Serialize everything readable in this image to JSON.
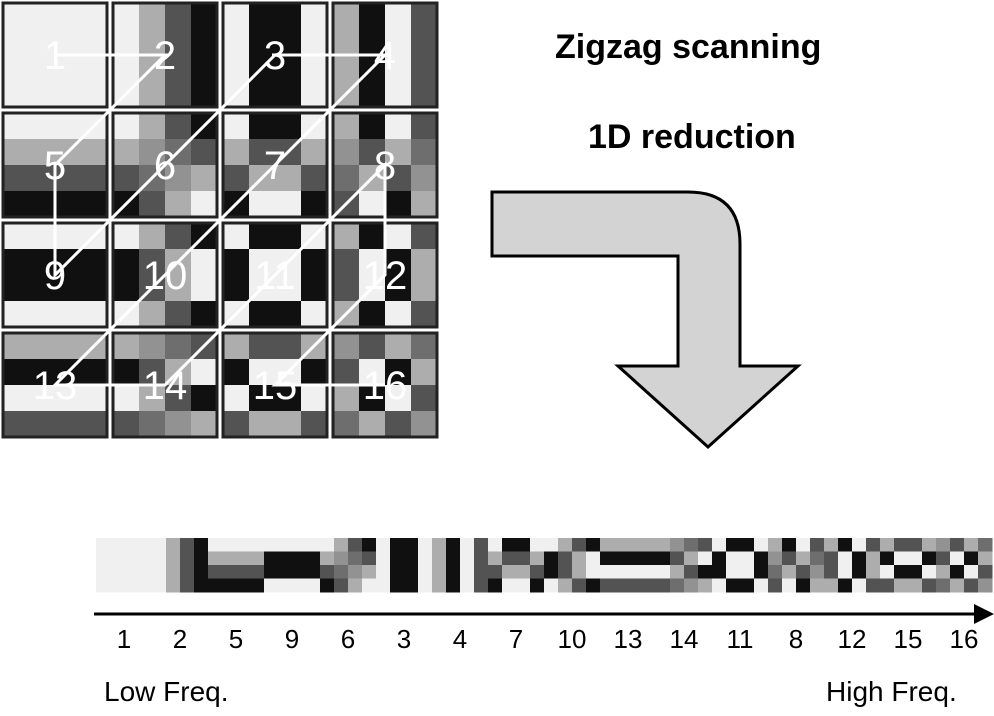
{
  "titles": {
    "line1": "Zigzag scanning",
    "line2": "1D reduction"
  },
  "grid": {
    "block_numbers": [
      "1",
      "2",
      "3",
      "4",
      "5",
      "6",
      "7",
      "8",
      "9",
      "10",
      "11",
      "12",
      "13",
      "14",
      "15",
      "16"
    ]
  },
  "strip": {
    "order": [
      "1",
      "2",
      "5",
      "9",
      "6",
      "3",
      "4",
      "7",
      "10",
      "13",
      "14",
      "11",
      "8",
      "12",
      "15",
      "16"
    ]
  },
  "axis": {
    "low_label": "Low Freq.",
    "high_label": "High Freq."
  }
}
